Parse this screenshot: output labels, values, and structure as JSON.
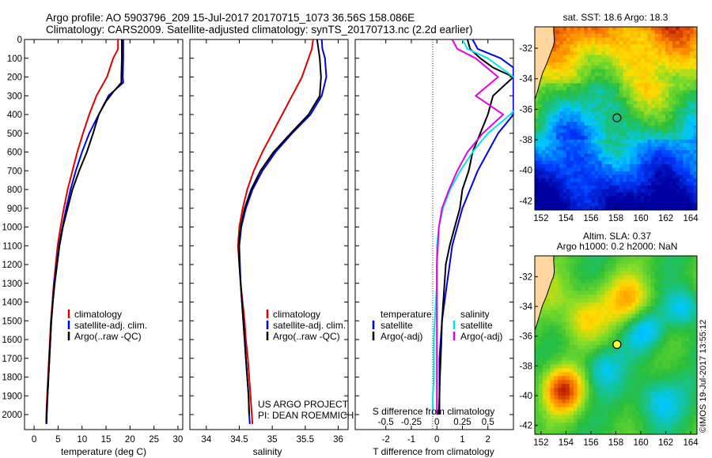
{
  "header": {
    "line1": "Argo profile: AO 5903796_209 15-Jul-2017 20170715_1073 36.56S 158.086E",
    "line2": "Climatology: CARS2009. Satellite-adjusted climatology: synTS_20170713.nc (2.2d earlier)"
  },
  "colors": {
    "climatology": "#e00000",
    "satellite": "#0000e6",
    "argo": "#000000",
    "salinity_sat": "#00e6e6",
    "salinity_argo": "#e600e6"
  },
  "legend_profile": {
    "climatology": "climatology",
    "satellite": "satellite-adj. clim.",
    "argo": "Argo(..raw -QC)"
  },
  "legend_diff": {
    "temp_title": "temperature",
    "temp_sat": "satellite",
    "temp_argo": "Argo(-adj)",
    "sal_title": "salinity",
    "sal_sat": "satellite",
    "sal_argo": "Argo(-adj)"
  },
  "project": {
    "line1": "US ARGO PROJECT",
    "line2": "PI: DEAN ROEMMICH"
  },
  "map_sst": {
    "title": "sat. SST: 18.6 Argo: 18.3"
  },
  "map_sla": {
    "title1": "Altim. SLA: 0.37",
    "title2": "Argo h1000: 0.2 h2000: NaN"
  },
  "watermark": "©IMOS 19-Jul-2017 13:55:12",
  "chart_data": [
    {
      "type": "line",
      "xlabel": "temperature (deg C)",
      "xlim": [
        -2,
        31
      ],
      "ylim": [
        2080,
        0
      ],
      "xticks": [
        0,
        5,
        10,
        15,
        20,
        25,
        30
      ],
      "yticks": [
        0,
        100,
        200,
        300,
        400,
        500,
        600,
        700,
        800,
        900,
        1000,
        1100,
        1200,
        1300,
        1400,
        1500,
        1600,
        1700,
        1800,
        1900,
        2000
      ],
      "series": [
        {
          "name": "climatology",
          "color": "red",
          "points": [
            [
              17.5,
              0
            ],
            [
              17.5,
              50
            ],
            [
              16.5,
              100
            ],
            [
              15.2,
              200
            ],
            [
              13,
              300
            ],
            [
              11.5,
              400
            ],
            [
              10.2,
              500
            ],
            [
              9,
              600
            ],
            [
              8,
              700
            ],
            [
              7,
              800
            ],
            [
              6.2,
              900
            ],
            [
              5.5,
              1000
            ],
            [
              4.9,
              1100
            ],
            [
              4.5,
              1200
            ],
            [
              4.1,
              1300
            ],
            [
              3.8,
              1400
            ],
            [
              3.5,
              1500
            ],
            [
              3.3,
              1600
            ],
            [
              3.1,
              1700
            ],
            [
              2.9,
              1800
            ],
            [
              2.7,
              1900
            ],
            [
              2.55,
              2000
            ],
            [
              2.5,
              2050
            ]
          ]
        },
        {
          "name": "satellite-adj. clim.",
          "color": "blue",
          "points": [
            [
              18.6,
              0
            ],
            [
              18.6,
              50
            ],
            [
              18.6,
              100
            ],
            [
              18.5,
              200
            ],
            [
              18.6,
              230
            ],
            [
              15.5,
              300
            ],
            [
              13.5,
              400
            ],
            [
              11.5,
              500
            ],
            [
              10,
              600
            ],
            [
              8.7,
              700
            ],
            [
              7.6,
              800
            ],
            [
              6.7,
              900
            ],
            [
              5.9,
              1000
            ],
            [
              5.2,
              1100
            ],
            [
              4.7,
              1200
            ],
            [
              4.2,
              1300
            ],
            [
              3.9,
              1400
            ],
            [
              3.6,
              1500
            ],
            [
              3.4,
              1600
            ],
            [
              3.2,
              1700
            ],
            [
              3,
              1800
            ],
            [
              2.8,
              1900
            ],
            [
              2.65,
              2000
            ],
            [
              2.6,
              2050
            ]
          ]
        },
        {
          "name": "Argo(..raw -QC)",
          "color": "black",
          "points": [
            [
              18.3,
              0
            ],
            [
              18.3,
              50
            ],
            [
              18.3,
              100
            ],
            [
              18.2,
              200
            ],
            [
              18.2,
              230
            ],
            [
              16.5,
              280
            ],
            [
              15,
              330
            ],
            [
              13.5,
              400
            ],
            [
              12.3,
              500
            ],
            [
              11,
              600
            ],
            [
              9.4,
              700
            ],
            [
              8,
              800
            ],
            [
              7,
              900
            ],
            [
              6,
              1000
            ],
            [
              5.3,
              1100
            ],
            [
              4.8,
              1200
            ],
            [
              4.3,
              1300
            ],
            [
              3.9,
              1400
            ],
            [
              3.6,
              1500
            ],
            [
              3.4,
              1600
            ],
            [
              3.2,
              1700
            ],
            [
              3,
              1800
            ],
            [
              2.8,
              1900
            ],
            [
              2.6,
              2000
            ],
            [
              2.55,
              2040
            ]
          ]
        }
      ]
    },
    {
      "type": "line",
      "xlabel": "salinity",
      "xlim": [
        33.75,
        36.15
      ],
      "ylim": [
        2080,
        0
      ],
      "xticks": [
        34,
        34.5,
        35,
        35.5,
        36
      ],
      "series": [
        {
          "name": "climatology",
          "color": "red",
          "points": [
            [
              35.62,
              0
            ],
            [
              35.6,
              50
            ],
            [
              35.55,
              100
            ],
            [
              35.45,
              200
            ],
            [
              35.3,
              300
            ],
            [
              35.15,
              400
            ],
            [
              35,
              500
            ],
            [
              34.85,
              600
            ],
            [
              34.72,
              700
            ],
            [
              34.62,
              800
            ],
            [
              34.55,
              900
            ],
            [
              34.5,
              1000
            ],
            [
              34.48,
              1100
            ],
            [
              34.5,
              1200
            ],
            [
              34.52,
              1300
            ],
            [
              34.55,
              1400
            ],
            [
              34.58,
              1500
            ],
            [
              34.6,
              1600
            ],
            [
              34.63,
              1700
            ],
            [
              34.65,
              1800
            ],
            [
              34.67,
              1900
            ],
            [
              34.69,
              2000
            ],
            [
              34.7,
              2050
            ]
          ]
        },
        {
          "name": "satellite-adj. clim.",
          "color": "blue",
          "points": [
            [
              35.75,
              0
            ],
            [
              35.76,
              50
            ],
            [
              35.8,
              100
            ],
            [
              35.82,
              200
            ],
            [
              35.75,
              300
            ],
            [
              35.58,
              400
            ],
            [
              35.3,
              500
            ],
            [
              35.05,
              600
            ],
            [
              34.85,
              700
            ],
            [
              34.7,
              800
            ],
            [
              34.6,
              900
            ],
            [
              34.53,
              1000
            ],
            [
              34.5,
              1100
            ],
            [
              34.51,
              1200
            ],
            [
              34.52,
              1300
            ],
            [
              34.54,
              1400
            ],
            [
              34.56,
              1500
            ],
            [
              34.58,
              1600
            ],
            [
              34.6,
              1700
            ],
            [
              34.62,
              1800
            ],
            [
              34.64,
              1900
            ],
            [
              34.65,
              2000
            ],
            [
              34.66,
              2050
            ]
          ]
        },
        {
          "name": "Argo(..raw -QC)",
          "color": "black",
          "points": [
            [
              35.68,
              0
            ],
            [
              35.7,
              50
            ],
            [
              35.72,
              100
            ],
            [
              35.74,
              200
            ],
            [
              35.72,
              300
            ],
            [
              35.55,
              400
            ],
            [
              35.28,
              500
            ],
            [
              35.02,
              600
            ],
            [
              34.82,
              700
            ],
            [
              34.68,
              800
            ],
            [
              34.58,
              900
            ],
            [
              34.52,
              1000
            ],
            [
              34.49,
              1100
            ],
            [
              34.5,
              1200
            ],
            [
              34.52,
              1300
            ],
            [
              34.54,
              1400
            ],
            [
              34.56,
              1500
            ],
            [
              34.58,
              1600
            ],
            [
              34.6,
              1700
            ],
            [
              34.62,
              1800
            ],
            [
              34.64,
              1900
            ],
            [
              34.65,
              2000
            ]
          ]
        }
      ]
    },
    {
      "type": "line",
      "xlabel": "T difference from climatology",
      "xlabel_top": "S difference from climatology",
      "xlim": [
        -3.2,
        3
      ],
      "xticks": [
        -2,
        -1,
        0,
        1,
        2
      ],
      "xticks_S": [
        "-0.5",
        "-0.25",
        "0",
        "0.25",
        "0.5"
      ],
      "ylim": [
        2080,
        0
      ],
      "series": [
        {
          "name": "temperature satellite",
          "color": "blue",
          "points": [
            [
              1.4,
              0
            ],
            [
              1.6,
              50
            ],
            [
              2.5,
              100
            ],
            [
              3,
              150
            ],
            [
              3,
              400
            ],
            [
              2.4,
              500
            ],
            [
              2,
              600
            ],
            [
              1.6,
              700
            ],
            [
              1.3,
              800
            ],
            [
              1,
              900
            ],
            [
              0.8,
              1000
            ],
            [
              0.6,
              1100
            ],
            [
              0.5,
              1200
            ],
            [
              0.4,
              1300
            ],
            [
              0.3,
              1400
            ],
            [
              0.2,
              1500
            ],
            [
              0.15,
              1600
            ],
            [
              0.1,
              1700
            ],
            [
              0.1,
              1800
            ],
            [
              0.1,
              1900
            ],
            [
              0.1,
              2000
            ]
          ]
        },
        {
          "name": "temperature Argo(-adj)",
          "color": "black",
          "points": [
            [
              1.2,
              0
            ],
            [
              1.3,
              50
            ],
            [
              1.7,
              100
            ],
            [
              2.2,
              150
            ],
            [
              3,
              200
            ],
            [
              2.2,
              300
            ],
            [
              2,
              400
            ],
            [
              1.7,
              500
            ],
            [
              1.4,
              600
            ],
            [
              1.25,
              700
            ],
            [
              1,
              800
            ],
            [
              0.9,
              900
            ],
            [
              0.7,
              1000
            ],
            [
              0.5,
              1100
            ],
            [
              0.35,
              1200
            ],
            [
              0.3,
              1300
            ],
            [
              0.25,
              1400
            ],
            [
              0.2,
              1500
            ],
            [
              0.18,
              1600
            ],
            [
              0.15,
              1700
            ],
            [
              0.12,
              1800
            ],
            [
              0.1,
              1900
            ],
            [
              0.08,
              2000
            ]
          ]
        },
        {
          "name": "salinity satellite",
          "color": "cyan",
          "points": [
            [
              0.25,
              0
            ],
            [
              0.3,
              50
            ],
            [
              0.5,
              100
            ],
            [
              0.75,
              200
            ],
            [
              0.88,
              300
            ],
            [
              0.72,
              400
            ],
            [
              0.5,
              500
            ],
            [
              0.35,
              600
            ],
            [
              0.23,
              700
            ],
            [
              0.13,
              800
            ],
            [
              0.06,
              900
            ],
            [
              0.02,
              1000
            ],
            [
              0,
              1100
            ],
            [
              0,
              1200
            ],
            [
              0,
              1300
            ],
            [
              -0.01,
              1400
            ],
            [
              -0.02,
              1500
            ],
            [
              -0.03,
              1600
            ],
            [
              -0.03,
              1700
            ],
            [
              -0.03,
              1800
            ],
            [
              -0.04,
              1900
            ],
            [
              -0.04,
              2000
            ]
          ]
        },
        {
          "name": "salinity Argo(-adj)",
          "color": "magenta",
          "points": [
            [
              0.15,
              0
            ],
            [
              0.2,
              50
            ],
            [
              0.38,
              100
            ],
            [
              0.6,
              200
            ],
            [
              0.38,
              300
            ],
            [
              0.65,
              400
            ],
            [
              0.45,
              500
            ],
            [
              0.3,
              600
            ],
            [
              0.2,
              700
            ],
            [
              0.12,
              800
            ],
            [
              0.05,
              900
            ],
            [
              0.02,
              1000
            ],
            [
              0.01,
              1100
            ],
            [
              0,
              1200
            ],
            [
              0,
              1300
            ],
            [
              0,
              1400
            ],
            [
              0,
              1500
            ],
            [
              0,
              1600
            ],
            [
              0,
              1700
            ],
            [
              0,
              1800
            ],
            [
              0,
              1900
            ],
            [
              0,
              2000
            ]
          ]
        }
      ]
    },
    {
      "type": "heatmap",
      "title": "sat. SST: 18.6 Argo: 18.3",
      "xticks": [
        152,
        154,
        156,
        158,
        160,
        162,
        164
      ],
      "yticks": [
        -32,
        -34,
        -36,
        -38,
        -40,
        -42
      ],
      "xlim": [
        151.5,
        164.5
      ],
      "ylim": [
        -42.6,
        -30.6
      ],
      "argo_location": [
        158.086,
        -36.56
      ]
    },
    {
      "type": "heatmap",
      "title": "Altim. SLA: 0.37",
      "xticks": [
        152,
        154,
        156,
        158,
        160,
        162,
        164
      ],
      "yticks": [
        -32,
        -34,
        -36,
        -38,
        -40,
        -42
      ],
      "xlim": [
        151.5,
        164.5
      ],
      "ylim": [
        -42.6,
        -30.6
      ],
      "argo_location": [
        158.086,
        -36.56
      ]
    }
  ]
}
